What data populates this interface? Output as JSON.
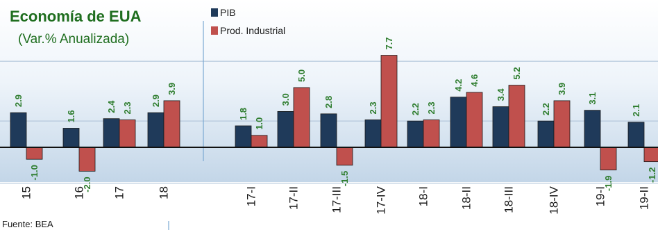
{
  "chart_data": {
    "type": "bar",
    "title": "Economía de EUA",
    "subtitle": "(Var.% Anualizada)",
    "source": "Fuente: BEA",
    "legend_position": "top-left",
    "categories": [
      "15",
      "16",
      "17",
      "18",
      "17-I",
      "17-II",
      "17-III",
      "17-IV",
      "18-I",
      "18-II",
      "18-III",
      "18-IV",
      "19-I",
      "19-II"
    ],
    "series": [
      {
        "name": "PIB",
        "color": "#1f3a5a",
        "values": [
          2.9,
          1.6,
          2.4,
          2.9,
          1.8,
          3.0,
          2.8,
          2.3,
          2.2,
          4.2,
          3.4,
          2.2,
          3.1,
          2.1
        ]
      },
      {
        "name": "Prod. Industrial",
        "color": "#c0504d",
        "values": [
          -1.0,
          -2.0,
          2.3,
          3.9,
          1.0,
          5.0,
          -1.5,
          7.7,
          2.3,
          4.6,
          5.2,
          3.9,
          -1.9,
          -1.2
        ]
      }
    ],
    "label_color": "#2e7d2e",
    "grid": true,
    "ylim": [
      -3,
      10
    ]
  }
}
